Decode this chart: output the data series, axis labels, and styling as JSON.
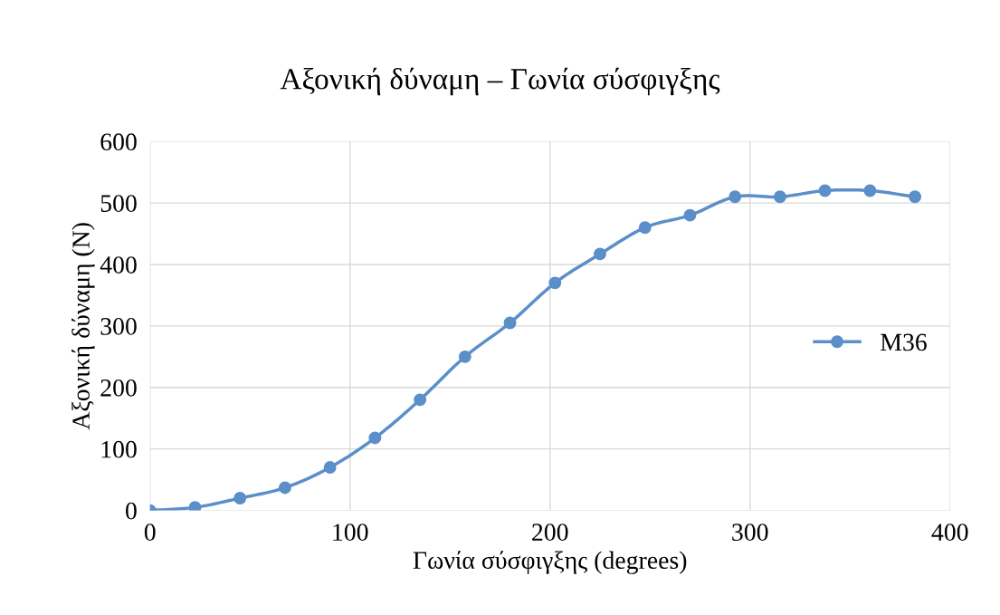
{
  "chart_data": {
    "type": "line",
    "title": "Αξονική δύναμη – Γωνία σύσφιγξης",
    "xlabel": "Γωνία σύσφιγξης (degrees)",
    "ylabel": "Αξονική δύναμη (N)",
    "x": [
      0,
      22.5,
      45,
      67.5,
      90,
      112.5,
      135,
      157.5,
      180,
      202.5,
      225,
      247.5,
      270,
      292.5,
      315,
      337.5,
      360,
      382.5
    ],
    "series": [
      {
        "name": "M36",
        "color": "#5b8fc9",
        "values": [
          0,
          5,
          20,
          37,
          70,
          118,
          180,
          250,
          305,
          370,
          417,
          460,
          480,
          510,
          510,
          520,
          520,
          510
        ]
      }
    ],
    "xlim": [
      0,
      400
    ],
    "xticks": [
      0,
      100,
      200,
      300,
      400
    ],
    "ylim": [
      0,
      600
    ],
    "yticks": [
      0,
      100,
      200,
      300,
      400,
      500,
      600
    ],
    "grid": true,
    "legend": "right",
    "marker": "circle",
    "line_style": "solid"
  }
}
